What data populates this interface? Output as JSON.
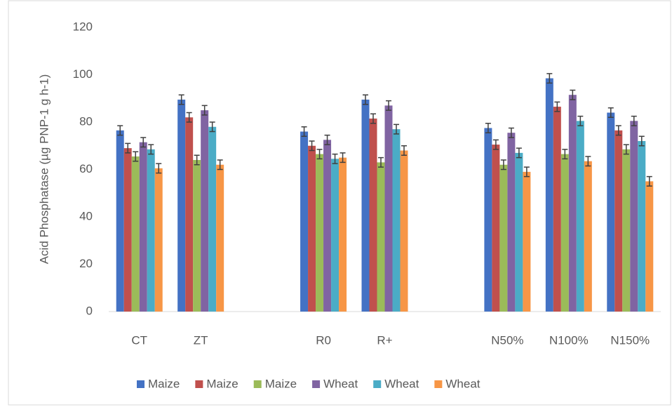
{
  "chart_data": {
    "type": "bar",
    "y_label": "Acid Phosphatase (µg PNP-1 g h-1)",
    "categories": [
      "CT",
      "ZT",
      null,
      "R0",
      "R+",
      null,
      "N50%",
      "N100%",
      "N150%"
    ],
    "series": [
      {
        "name": "Maize",
        "color": "#4472c4",
        "values": [
          76.5,
          89.5,
          null,
          76,
          89.5,
          null,
          77.5,
          98.5,
          84
        ],
        "errors": [
          2,
          2,
          null,
          2,
          2,
          null,
          2,
          2,
          2
        ]
      },
      {
        "name": "Maize",
        "color": "#c0504d",
        "values": [
          69,
          82,
          null,
          70,
          81.5,
          null,
          70.5,
          86.5,
          76.5
        ],
        "errors": [
          2,
          2,
          null,
          2,
          2,
          null,
          2,
          2,
          2
        ]
      },
      {
        "name": "Maize",
        "color": "#9bbb59",
        "values": [
          65.5,
          64,
          null,
          66.5,
          63,
          null,
          62,
          66.5,
          68.5
        ],
        "errors": [
          2,
          2,
          null,
          2,
          2,
          null,
          2,
          2,
          2
        ]
      },
      {
        "name": "Wheat",
        "color": "#8064a2",
        "values": [
          71.5,
          85,
          null,
          72.5,
          87,
          null,
          75.5,
          91.5,
          80.5
        ],
        "errors": [
          2,
          2,
          null,
          2,
          2,
          null,
          2,
          2,
          2
        ]
      },
      {
        "name": "Wheat",
        "color": "#4bacc6",
        "values": [
          68.5,
          78,
          null,
          64.5,
          77,
          null,
          67,
          80.5,
          72
        ],
        "errors": [
          2,
          2,
          null,
          2,
          2,
          null,
          2,
          2,
          2
        ]
      },
      {
        "name": "Wheat",
        "color": "#f79646",
        "values": [
          60.5,
          62,
          null,
          65,
          68,
          null,
          59,
          63.5,
          55
        ],
        "errors": [
          2,
          2,
          null,
          2,
          2,
          null,
          2,
          2,
          2
        ]
      }
    ],
    "ylim": [
      0,
      120
    ],
    "yticks": [
      0,
      20,
      40,
      60,
      80,
      100,
      120
    ],
    "grid": false,
    "legend": "bottom"
  }
}
